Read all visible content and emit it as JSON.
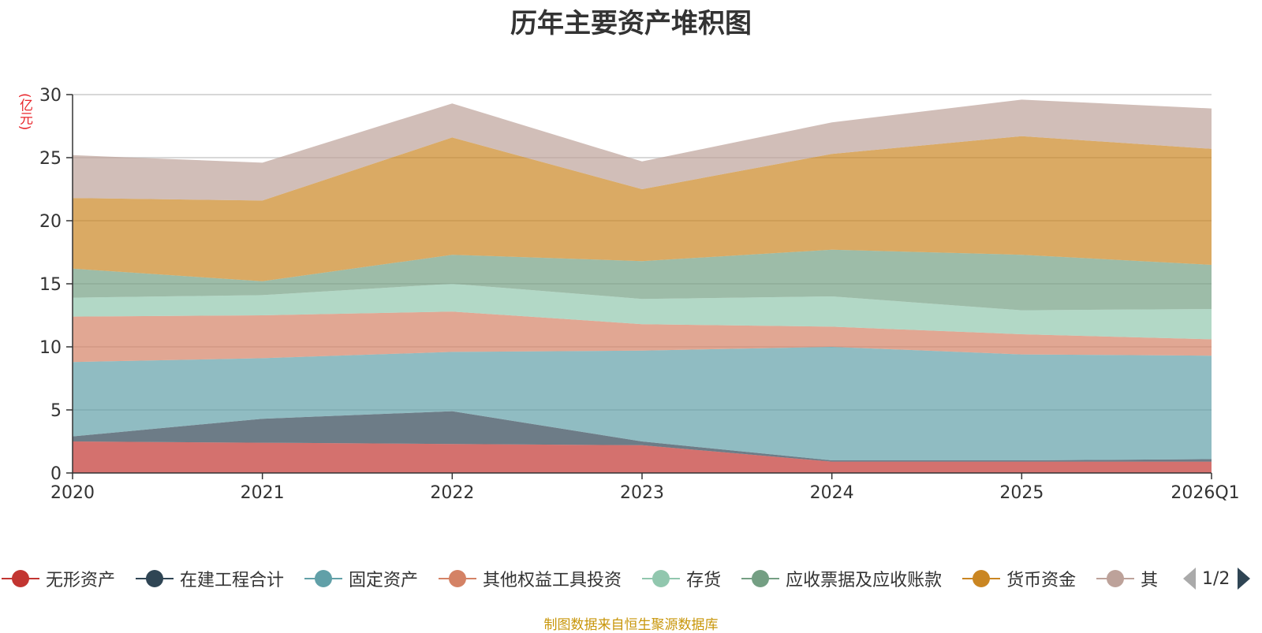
{
  "chart_data": {
    "type": "area",
    "stacked": true,
    "title": "历年主要资产堆积图",
    "ylabel": "(亿元)",
    "xlabel": "",
    "categories": [
      "2020",
      "2021",
      "2022",
      "2023",
      "2024",
      "2025",
      "2026Q1"
    ],
    "ylim": [
      0,
      30
    ],
    "yticks": [
      "0",
      "5",
      "10",
      "15",
      "20",
      "25",
      "30"
    ],
    "grid": true,
    "series": [
      {
        "name": "无形资产",
        "color": "#c23531",
        "values": [
          2.5,
          2.4,
          2.3,
          2.2,
          0.9,
          0.9,
          0.9
        ]
      },
      {
        "name": "在建工程合计",
        "color": "#2f4554",
        "values": [
          0.4,
          1.9,
          2.6,
          0.3,
          0.1,
          0.1,
          0.2
        ]
      },
      {
        "name": "固定资产",
        "color": "#61a0a8",
        "values": [
          5.9,
          4.8,
          4.7,
          7.2,
          9.0,
          8.4,
          8.2
        ]
      },
      {
        "name": "其他权益工具投资",
        "color": "#d48265",
        "values": [
          3.6,
          3.4,
          3.2,
          2.1,
          1.6,
          1.6,
          1.3
        ]
      },
      {
        "name": "存货",
        "color": "#91c7ae",
        "values": [
          1.5,
          1.6,
          2.2,
          2.0,
          2.4,
          1.9,
          2.4
        ]
      },
      {
        "name": "应收票据及应收账款",
        "color": "#749f83",
        "values": [
          2.3,
          1.1,
          2.3,
          3.0,
          3.7,
          4.4,
          3.5
        ]
      },
      {
        "name": "货币资金",
        "color": "#ca8622",
        "values": [
          5.6,
          6.4,
          9.3,
          5.7,
          7.6,
          9.4,
          9.2
        ]
      },
      {
        "name": "其他",
        "color": "#bda29a",
        "values": [
          3.4,
          3.0,
          2.7,
          2.2,
          2.5,
          2.9,
          3.2
        ]
      }
    ],
    "legend_position": "bottom"
  },
  "legend": {
    "page": "1/2"
  },
  "source": "制图数据来自恒生聚源数据库"
}
